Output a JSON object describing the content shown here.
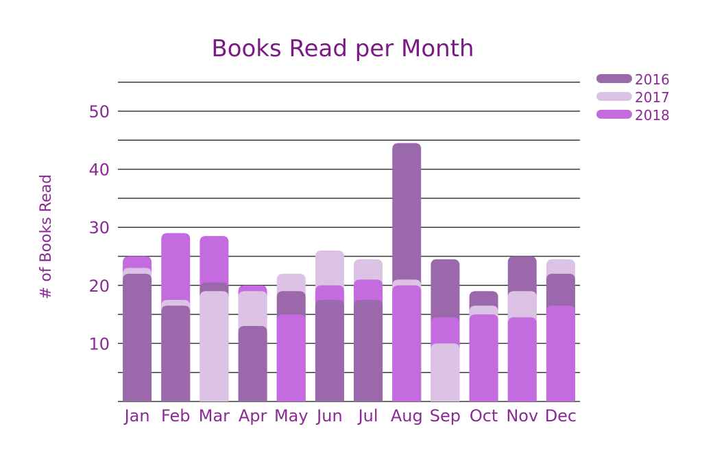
{
  "chart_data": {
    "type": "bar",
    "title": "Books Read per Month",
    "xlabel": "",
    "ylabel": "# of Books Read",
    "categories": [
      "Jan",
      "Feb",
      "Mar",
      "Apr",
      "May",
      "Jun",
      "Jul",
      "Aug",
      "Sep",
      "Oct",
      "Nov",
      "Dec"
    ],
    "series": [
      {
        "name": "2016",
        "color": "#9b69ab",
        "values": [
          22,
          16.5,
          20.5,
          13,
          19,
          17.5,
          17.5,
          44.5,
          24.5,
          19,
          25,
          22
        ]
      },
      {
        "name": "2017",
        "color": "#dcc3e6",
        "values": [
          23,
          17.5,
          19,
          19,
          22,
          26,
          24.5,
          21,
          10,
          16.5,
          19,
          24.5
        ]
      },
      {
        "name": "2018",
        "color": "#c46be0",
        "values": [
          25,
          29,
          28.5,
          20,
          15,
          20,
          21,
          20,
          14.5,
          15,
          14.5,
          16.5
        ]
      }
    ],
    "ylim": [
      0,
      55
    ],
    "yticks": [
      10,
      20,
      30,
      40,
      50
    ],
    "gridlines": [
      5,
      10,
      15,
      20,
      25,
      30,
      35,
      40,
      45,
      50,
      55
    ],
    "grid": true,
    "legend": "top-right"
  }
}
